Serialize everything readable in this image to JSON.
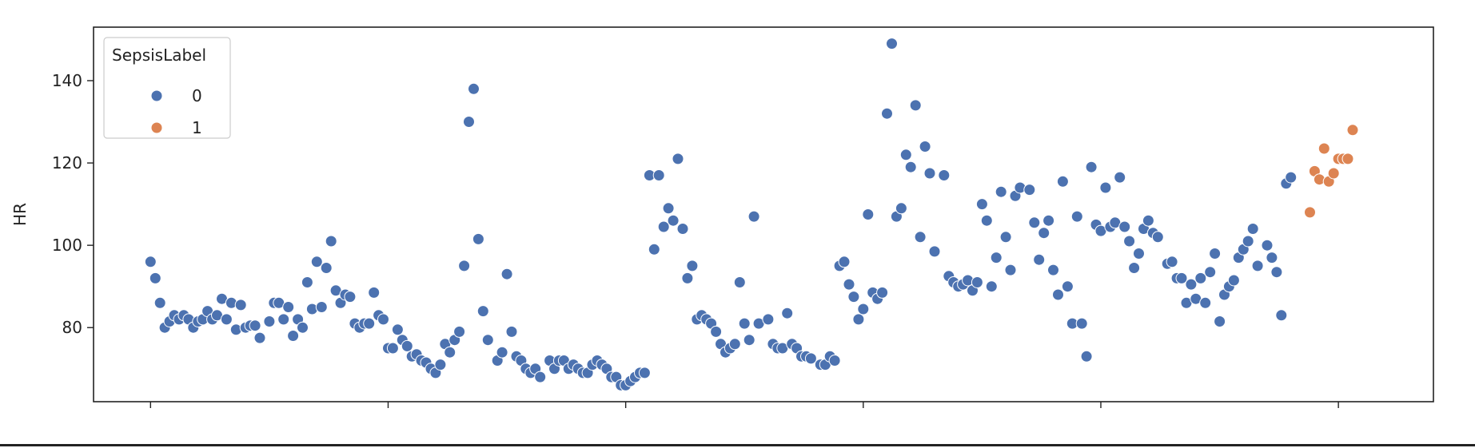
{
  "chart_data": {
    "type": "scatter",
    "title": "",
    "xlabel": "",
    "ylabel": "HR",
    "xlim": [
      -12,
      270
    ],
    "ylim": [
      62,
      153
    ],
    "yticks": [
      80,
      100,
      120,
      140
    ],
    "xticks": [
      0,
      50,
      100,
      150,
      200,
      250
    ],
    "grid": false,
    "legend": {
      "title": "SepsisLabel",
      "placement": "top-left",
      "entries": [
        {
          "label": "0",
          "color": "#4c72b0"
        },
        {
          "label": "1",
          "color": "#dd8452"
        }
      ]
    },
    "series": [
      {
        "name": "0",
        "color": "#4c72b0",
        "points": [
          [
            0,
            96
          ],
          [
            1,
            92
          ],
          [
            2,
            86
          ],
          [
            3,
            80
          ],
          [
            4,
            81.5
          ],
          [
            5,
            83
          ],
          [
            6,
            82
          ],
          [
            7,
            83
          ],
          [
            8,
            82
          ],
          [
            9,
            80
          ],
          [
            10,
            81.5
          ],
          [
            11,
            82
          ],
          [
            12,
            84
          ],
          [
            13,
            82
          ],
          [
            14,
            83
          ],
          [
            15,
            87
          ],
          [
            16,
            82
          ],
          [
            17,
            86
          ],
          [
            18,
            79.5
          ],
          [
            19,
            85.5
          ],
          [
            20,
            80
          ],
          [
            21,
            80.5
          ],
          [
            22,
            80.5
          ],
          [
            23,
            77.5
          ],
          [
            25,
            81.5
          ],
          [
            26,
            86
          ],
          [
            27,
            86
          ],
          [
            28,
            82
          ],
          [
            29,
            85
          ],
          [
            30,
            78
          ],
          [
            31,
            82
          ],
          [
            32,
            80
          ],
          [
            33,
            91
          ],
          [
            34,
            84.5
          ],
          [
            35,
            96
          ],
          [
            36,
            85
          ],
          [
            37,
            94.5
          ],
          [
            38,
            101
          ],
          [
            39,
            89
          ],
          [
            40,
            86
          ],
          [
            41,
            88
          ],
          [
            42,
            87.5
          ],
          [
            43,
            81
          ],
          [
            44,
            80
          ],
          [
            45,
            81
          ],
          [
            46,
            81
          ],
          [
            47,
            88.5
          ],
          [
            48,
            83
          ],
          [
            49,
            82
          ],
          [
            50,
            75
          ],
          [
            51,
            75
          ],
          [
            52,
            79.5
          ],
          [
            53,
            77
          ],
          [
            54,
            75.5
          ],
          [
            55,
            73
          ],
          [
            56,
            73.5
          ],
          [
            57,
            72
          ],
          [
            58,
            71.5
          ],
          [
            59,
            70
          ],
          [
            60,
            69
          ],
          [
            61,
            71
          ],
          [
            62,
            76
          ],
          [
            63,
            74
          ],
          [
            64,
            77
          ],
          [
            65,
            79
          ],
          [
            66,
            95
          ],
          [
            67,
            130
          ],
          [
            68,
            138
          ],
          [
            69,
            101.5
          ],
          [
            70,
            84
          ],
          [
            71,
            77
          ],
          [
            73,
            72
          ],
          [
            74,
            74
          ],
          [
            75,
            93
          ],
          [
            76,
            79
          ],
          [
            77,
            73
          ],
          [
            78,
            72
          ],
          [
            79,
            70
          ],
          [
            80,
            69
          ],
          [
            81,
            70
          ],
          [
            82,
            68
          ],
          [
            84,
            72
          ],
          [
            85,
            70
          ],
          [
            86,
            72
          ],
          [
            87,
            72
          ],
          [
            88,
            70
          ],
          [
            89,
            71
          ],
          [
            90,
            70
          ],
          [
            91,
            69
          ],
          [
            92,
            69
          ],
          [
            93,
            71
          ],
          [
            94,
            72
          ],
          [
            95,
            71
          ],
          [
            96,
            70
          ],
          [
            97,
            68
          ],
          [
            98,
            68
          ],
          [
            99,
            66
          ],
          [
            100,
            66
          ],
          [
            101,
            67
          ],
          [
            102,
            68
          ],
          [
            103,
            69
          ],
          [
            104,
            69
          ],
          [
            105,
            117
          ],
          [
            106,
            99
          ],
          [
            107,
            117
          ],
          [
            108,
            104.5
          ],
          [
            109,
            109
          ],
          [
            110,
            106
          ],
          [
            111,
            121
          ],
          [
            112,
            104
          ],
          [
            113,
            92
          ],
          [
            114,
            95
          ],
          [
            115,
            82
          ],
          [
            116,
            83
          ],
          [
            117,
            82
          ],
          [
            118,
            81
          ],
          [
            119,
            79
          ],
          [
            120,
            76
          ],
          [
            121,
            74
          ],
          [
            122,
            75
          ],
          [
            123,
            76
          ],
          [
            124,
            91
          ],
          [
            125,
            81
          ],
          [
            126,
            77
          ],
          [
            127,
            107
          ],
          [
            128,
            81
          ],
          [
            130,
            82
          ],
          [
            131,
            76
          ],
          [
            132,
            75
          ],
          [
            133,
            75
          ],
          [
            134,
            83.5
          ],
          [
            135,
            76
          ],
          [
            136,
            75
          ],
          [
            137,
            73
          ],
          [
            138,
            73
          ],
          [
            139,
            72.5
          ],
          [
            141,
            71
          ],
          [
            142,
            71
          ],
          [
            143,
            73
          ],
          [
            144,
            72
          ],
          [
            145,
            95
          ],
          [
            146,
            96
          ],
          [
            147,
            90.5
          ],
          [
            148,
            87.5
          ],
          [
            149,
            82
          ],
          [
            150,
            84.5
          ],
          [
            151,
            107.5
          ],
          [
            152,
            88.5
          ],
          [
            153,
            87
          ],
          [
            154,
            88.5
          ],
          [
            155,
            132
          ],
          [
            156,
            149
          ],
          [
            157,
            107
          ],
          [
            158,
            109
          ],
          [
            159,
            122
          ],
          [
            160,
            119
          ],
          [
            161,
            134
          ],
          [
            162,
            102
          ],
          [
            163,
            124
          ],
          [
            164,
            117.5
          ],
          [
            165,
            98.5
          ],
          [
            167,
            117
          ],
          [
            168,
            92.5
          ],
          [
            169,
            91
          ],
          [
            170,
            90
          ],
          [
            171,
            90.5
          ],
          [
            172,
            91.5
          ],
          [
            173,
            89
          ],
          [
            174,
            91
          ],
          [
            175,
            110
          ],
          [
            176,
            106
          ],
          [
            177,
            90
          ],
          [
            178,
            97
          ],
          [
            179,
            113
          ],
          [
            180,
            102
          ],
          [
            181,
            94
          ],
          [
            182,
            112
          ],
          [
            183,
            114
          ],
          [
            185,
            113.5
          ],
          [
            186,
            105.5
          ],
          [
            187,
            96.5
          ],
          [
            188,
            103
          ],
          [
            189,
            106
          ],
          [
            190,
            94
          ],
          [
            191,
            88
          ],
          [
            192,
            115.5
          ],
          [
            193,
            90
          ],
          [
            194,
            81
          ],
          [
            195,
            107
          ],
          [
            196,
            81
          ],
          [
            197,
            73
          ],
          [
            198,
            119
          ],
          [
            199,
            105
          ],
          [
            200,
            103.5
          ],
          [
            201,
            114
          ],
          [
            202,
            104.5
          ],
          [
            203,
            105.5
          ],
          [
            204,
            116.5
          ],
          [
            205,
            104.5
          ],
          [
            206,
            101
          ],
          [
            207,
            94.5
          ],
          [
            208,
            98
          ],
          [
            209,
            104
          ],
          [
            210,
            106
          ],
          [
            211,
            103
          ],
          [
            212,
            102
          ],
          [
            214,
            95.5
          ],
          [
            215,
            96
          ],
          [
            216,
            92
          ],
          [
            217,
            92
          ],
          [
            218,
            86
          ],
          [
            219,
            90.5
          ],
          [
            220,
            87
          ],
          [
            221,
            92
          ],
          [
            222,
            86
          ],
          [
            223,
            93.5
          ],
          [
            224,
            98
          ],
          [
            225,
            81.5
          ],
          [
            226,
            88
          ],
          [
            227,
            90
          ],
          [
            228,
            91.5
          ],
          [
            229,
            97
          ],
          [
            230,
            99
          ],
          [
            231,
            101
          ],
          [
            232,
            104
          ],
          [
            233,
            95
          ],
          [
            235,
            100
          ],
          [
            236,
            97
          ],
          [
            237,
            93.5
          ],
          [
            238,
            83
          ],
          [
            239,
            115
          ],
          [
            240,
            116.5
          ]
        ]
      },
      {
        "name": "1",
        "color": "#dd8452",
        "points": [
          [
            244,
            108
          ],
          [
            245,
            118
          ],
          [
            246,
            116
          ],
          [
            247,
            123.5
          ],
          [
            248,
            115.5
          ],
          [
            249,
            117.5
          ],
          [
            250,
            121
          ],
          [
            251,
            121
          ],
          [
            252,
            121
          ],
          [
            253,
            128
          ]
        ]
      }
    ]
  }
}
